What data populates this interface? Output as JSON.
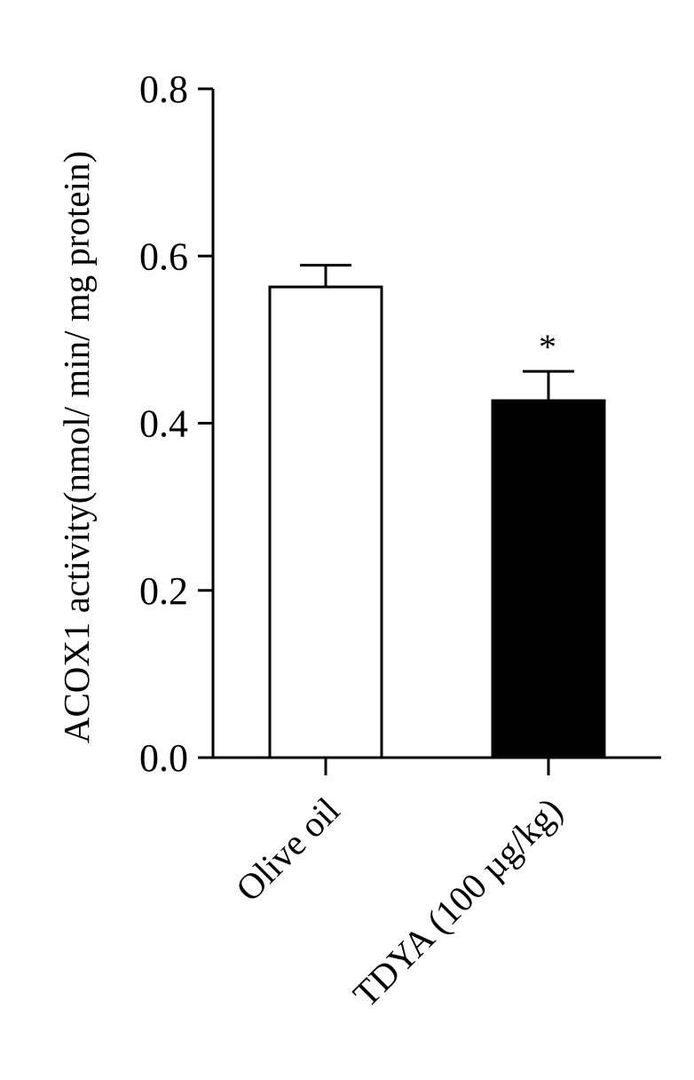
{
  "chart_data": {
    "type": "bar",
    "title": "",
    "xlabel": "",
    "ylabel": "ACOX1 activity(nmol/ min/ mg protein)",
    "ylim": [
      0,
      0.8
    ],
    "yticks": [
      0.0,
      0.2,
      0.4,
      0.6,
      0.8
    ],
    "ytick_labels": [
      "0.0",
      "0.2",
      "0.4",
      "0.6",
      "0.8"
    ],
    "categories": [
      "Olive oil",
      "TDYA (100 µg/kg)"
    ],
    "values": [
      0.563,
      0.427
    ],
    "errors": [
      0.026,
      0.035
    ],
    "bar_colors": [
      "#ffffff",
      "#000000"
    ],
    "bar_edge_color": "#000000",
    "annotations": [
      "",
      "*"
    ],
    "grid": false,
    "legend": "none"
  }
}
